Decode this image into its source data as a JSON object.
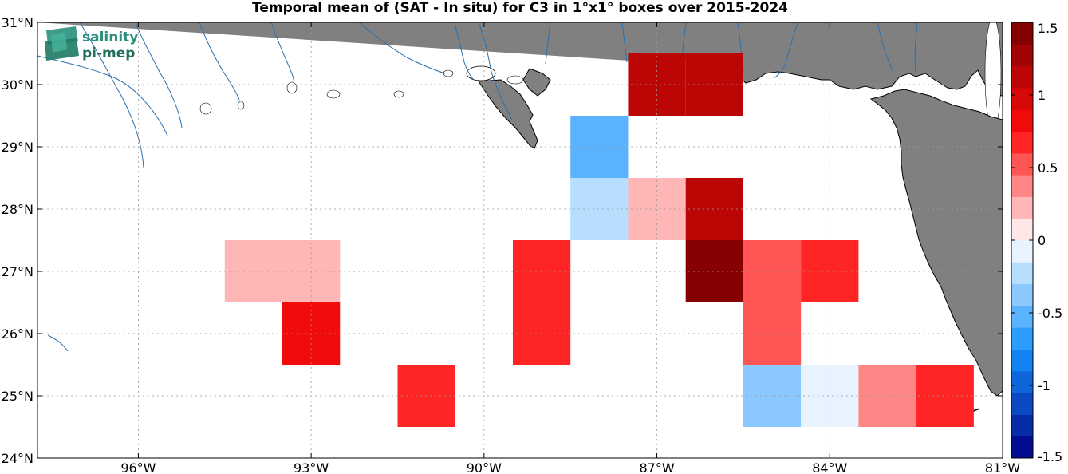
{
  "title": "Temporal mean of (SAT - In situ) for C3 in 1°x1° boxes over 2015-2024",
  "logo": {
    "line1": "salinity",
    "line2": "pi-mep"
  },
  "map": {
    "lon_range": [
      -97.75,
      -81.0
    ],
    "lat_range": [
      24.0,
      31.0
    ],
    "x_ticks": [
      {
        "lon": -96,
        "label": "96°W"
      },
      {
        "lon": -93,
        "label": "93°W"
      },
      {
        "lon": -90,
        "label": "90°W"
      },
      {
        "lon": -87,
        "label": "87°W"
      },
      {
        "lon": -84,
        "label": "84°W"
      },
      {
        "lon": -81,
        "label": "81°W"
      }
    ],
    "y_ticks": [
      {
        "lat": 24,
        "label": "24°N"
      },
      {
        "lat": 25,
        "label": "25°N"
      },
      {
        "lat": 26,
        "label": "26°N"
      },
      {
        "lat": 27,
        "label": "27°N"
      },
      {
        "lat": 28,
        "label": "28°N"
      },
      {
        "lat": 29,
        "label": "29°N"
      },
      {
        "lat": 30,
        "label": "30°N"
      },
      {
        "lat": 31,
        "label": "31°N"
      }
    ],
    "grid": true,
    "land_color": "#808080",
    "river_color": "#2a6fb0"
  },
  "chart_data": {
    "type": "heatmap",
    "box_size_deg": 1,
    "colorbar": {
      "min": -1.5,
      "max": 1.5,
      "ticks": [
        {
          "value": 1.5,
          "label": "1.5"
        },
        {
          "value": 1,
          "label": "1"
        },
        {
          "value": 0.5,
          "label": "0.5"
        },
        {
          "value": 0,
          "label": "0"
        },
        {
          "value": -0.5,
          "label": "-0.5"
        },
        {
          "value": -1,
          "label": "-1"
        },
        {
          "value": -1.5,
          "label": "-1.5"
        }
      ],
      "colormap": "blue-white-red"
    },
    "boxes": [
      {
        "lon": -94,
        "lat": 27,
        "value": 0.2
      },
      {
        "lon": -93,
        "lat": 27,
        "value": 0.2
      },
      {
        "lon": -93,
        "lat": 26,
        "value": 0.85
      },
      {
        "lon": -91,
        "lat": 25,
        "value": 0.65
      },
      {
        "lon": -89,
        "lat": 27,
        "value": 0.65
      },
      {
        "lon": -89,
        "lat": 26,
        "value": 0.65
      },
      {
        "lon": -88,
        "lat": 29,
        "value": -0.6
      },
      {
        "lon": -88,
        "lat": 28,
        "value": -0.25
      },
      {
        "lon": -87,
        "lat": 30,
        "value": 1.05
      },
      {
        "lon": -87,
        "lat": 28,
        "value": 0.2
      },
      {
        "lon": -86,
        "lat": 30,
        "value": 1.15
      },
      {
        "lon": -86,
        "lat": 28,
        "value": 1.05
      },
      {
        "lon": -86,
        "lat": 27,
        "value": 1.5
      },
      {
        "lon": -85,
        "lat": 27,
        "value": 0.45
      },
      {
        "lon": -85,
        "lat": 26,
        "value": 0.45
      },
      {
        "lon": -85,
        "lat": 25,
        "value": -0.3
      },
      {
        "lon": -84,
        "lat": 27,
        "value": 0.65
      },
      {
        "lon": -84,
        "lat": 25,
        "value": -0.15
      },
      {
        "lon": -83,
        "lat": 25,
        "value": 0.3
      },
      {
        "lon": -82,
        "lat": 25,
        "value": 0.65
      }
    ]
  }
}
